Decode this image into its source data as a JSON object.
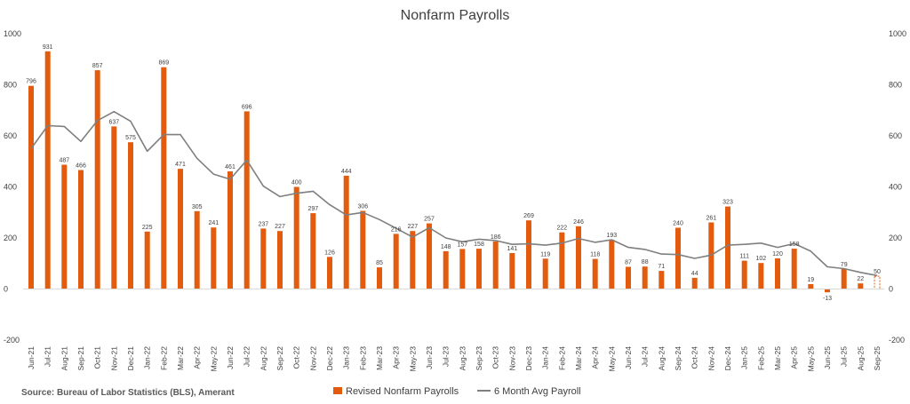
{
  "chart_data": {
    "type": "bar",
    "title": "Nonfarm Payrolls",
    "source": "Source: Bureau of Labor Statistics (BLS), Amerant",
    "categories": [
      "Jun-21",
      "Jul-21",
      "Aug-21",
      "Sep-21",
      "Oct-21",
      "Nov-21",
      "Dec-21",
      "Jan-22",
      "Feb-22",
      "Mar-22",
      "Apr-22",
      "May-22",
      "Jun-22",
      "Jul-22",
      "Aug-22",
      "Sep-22",
      "Oct-22",
      "Nov-22",
      "Dec-22",
      "Jan-23",
      "Feb-23",
      "Mar-23",
      "Apr-23",
      "May-23",
      "Jun-23",
      "Jul-23",
      "Aug-23",
      "Sep-23",
      "Oct-23",
      "Nov-23",
      "Dec-23",
      "Jan-24",
      "Feb-24",
      "Mar-24",
      "Apr-24",
      "May-24",
      "Jun-24",
      "Jul-24",
      "Aug-24",
      "Sep-24",
      "Oct-24",
      "Nov-24",
      "Dec-24",
      "Jan-25",
      "Feb-25",
      "Mar-25",
      "Apr-25",
      "May-25",
      "Jun-25",
      "Jul-25",
      "Aug-25",
      "Sep-25"
    ],
    "ylim": [
      -200,
      1000
    ],
    "yticks": [
      -200,
      0,
      200,
      400,
      600,
      800,
      1000
    ],
    "series": [
      {
        "name": "Revised Nonfarm Payrolls",
        "type": "bar",
        "color": "#E25B0E",
        "values": [
          796,
          931,
          487,
          466,
          857,
          637,
          575,
          225,
          869,
          471,
          305,
          241,
          461,
          696,
          237,
          227,
          400,
          297,
          126,
          444,
          306,
          85,
          216,
          227,
          257,
          148,
          157,
          158,
          186,
          141,
          269,
          119,
          222,
          246,
          118,
          193,
          87,
          88,
          71,
          240,
          44,
          261,
          323,
          111,
          102,
          120,
          158,
          19,
          -13,
          79,
          22,
          50
        ],
        "last_bar_style": "dashed-outline"
      },
      {
        "name": "6 Month Avg Payroll",
        "type": "line",
        "color": "#7F7F7F",
        "values": [
          550,
          640,
          637,
          578,
          660,
          695,
          657,
          540,
          605,
          605,
          512,
          450,
          430,
          505,
          403,
          362,
          375,
          383,
          330,
          290,
          300,
          272,
          238,
          203,
          240,
          200,
          185,
          195,
          190,
          175,
          177,
          172,
          180,
          198,
          183,
          193,
          163,
          155,
          137,
          135,
          120,
          133,
          172,
          175,
          180,
          163,
          178,
          148,
          87,
          80,
          65,
          53
        ]
      }
    ],
    "legend_position": "bottom",
    "grid": false
  }
}
